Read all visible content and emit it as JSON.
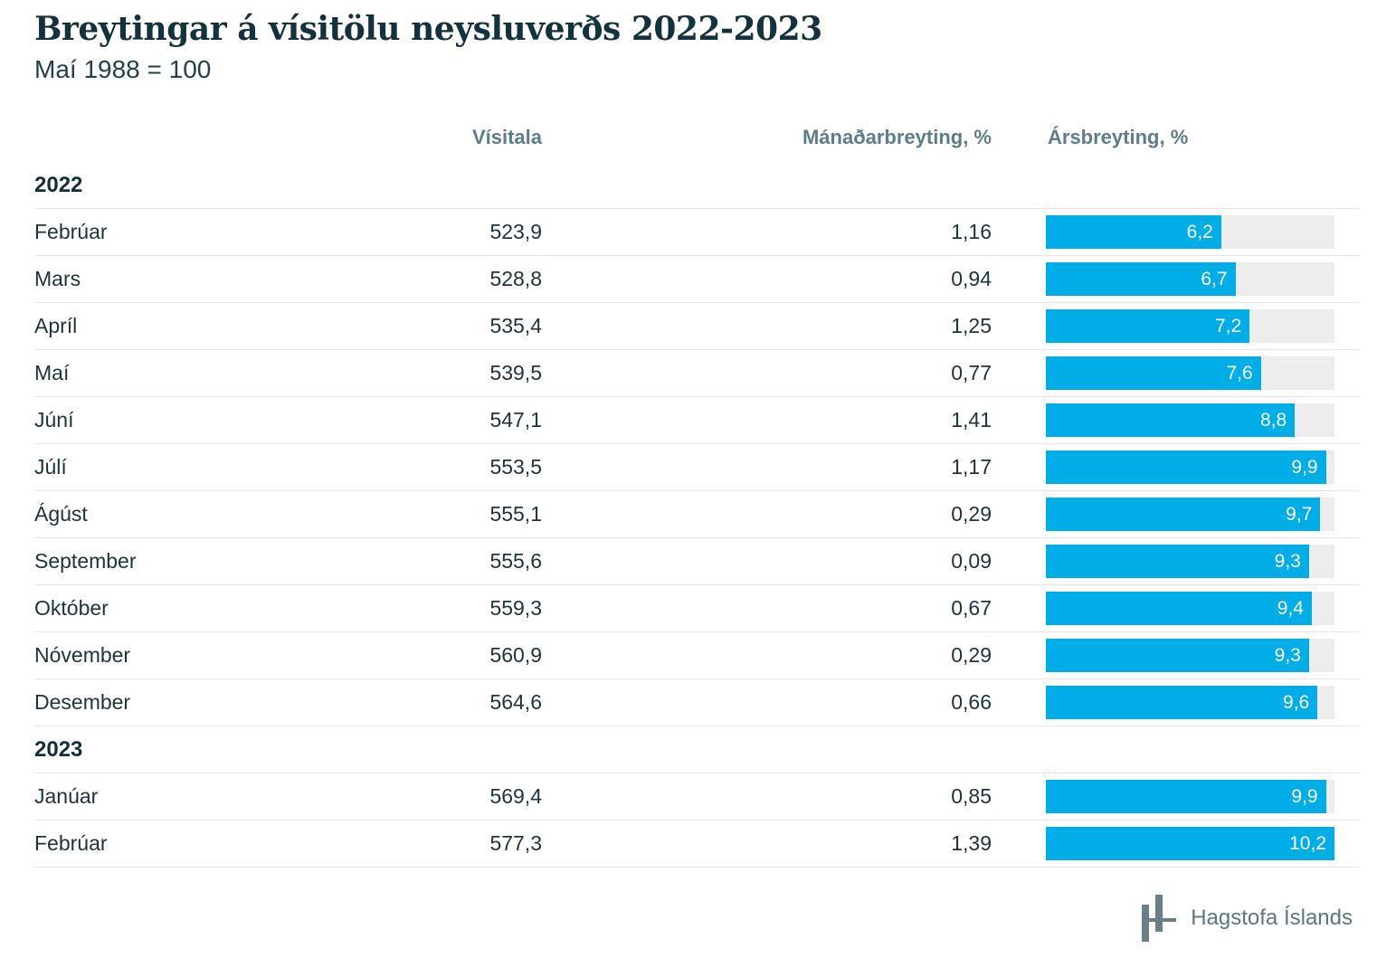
{
  "title": "Breytingar á vísitölu neysluverðs 2022-2023",
  "subtitle": "Maí 1988 = 100",
  "columns": {
    "visitala": "Vísitala",
    "manadarbreyting": "Mánaðarbreyting, %",
    "arsbreyting": "Ársbreyting, %"
  },
  "colors": {
    "bar_fill": "#00ade7",
    "bar_track": "#ededed",
    "title_text": "#14323d",
    "header_text": "#5e7d8a"
  },
  "chart_data": {
    "type": "bar",
    "title": "Breytingar á vísitölu neysluverðs 2022-2023",
    "subtitle": "Maí 1988 = 100",
    "value_column_labels": [
      "Vísitala",
      "Mánaðarbreyting, %",
      "Ársbreyting, %"
    ],
    "bar_series_name": "Ársbreyting, %",
    "bar_axis_max": 10.2,
    "groups": [
      {
        "year": "2022",
        "rows": [
          {
            "month": "Febrúar",
            "visitala": "523,9",
            "manadarbreyting": "1,16",
            "arsbreyting": "6,2"
          },
          {
            "month": "Mars",
            "visitala": "528,8",
            "manadarbreyting": "0,94",
            "arsbreyting": "6,7"
          },
          {
            "month": "Apríl",
            "visitala": "535,4",
            "manadarbreyting": "1,25",
            "arsbreyting": "7,2"
          },
          {
            "month": "Maí",
            "visitala": "539,5",
            "manadarbreyting": "0,77",
            "arsbreyting": "7,6"
          },
          {
            "month": "Júní",
            "visitala": "547,1",
            "manadarbreyting": "1,41",
            "arsbreyting": "8,8"
          },
          {
            "month": "Júlí",
            "visitala": "553,5",
            "manadarbreyting": "1,17",
            "arsbreyting": "9,9"
          },
          {
            "month": "Ágúst",
            "visitala": "555,1",
            "manadarbreyting": "0,29",
            "arsbreyting": "9,7"
          },
          {
            "month": "September",
            "visitala": "555,6",
            "manadarbreyting": "0,09",
            "arsbreyting": "9,3"
          },
          {
            "month": "Október",
            "visitala": "559,3",
            "manadarbreyting": "0,67",
            "arsbreyting": "9,4"
          },
          {
            "month": "Nóvember",
            "visitala": "560,9",
            "manadarbreyting": "0,29",
            "arsbreyting": "9,3"
          },
          {
            "month": "Desember",
            "visitala": "564,6",
            "manadarbreyting": "0,66",
            "arsbreyting": "9,6"
          }
        ]
      },
      {
        "year": "2023",
        "rows": [
          {
            "month": "Janúar",
            "visitala": "569,4",
            "manadarbreyting": "0,85",
            "arsbreyting": "9,9"
          },
          {
            "month": "Febrúar",
            "visitala": "577,3",
            "manadarbreyting": "1,39",
            "arsbreyting": "10,2"
          }
        ]
      }
    ]
  },
  "footer": {
    "logo": "hagstofa-islands-logo",
    "text": "Hagstofa Íslands"
  }
}
